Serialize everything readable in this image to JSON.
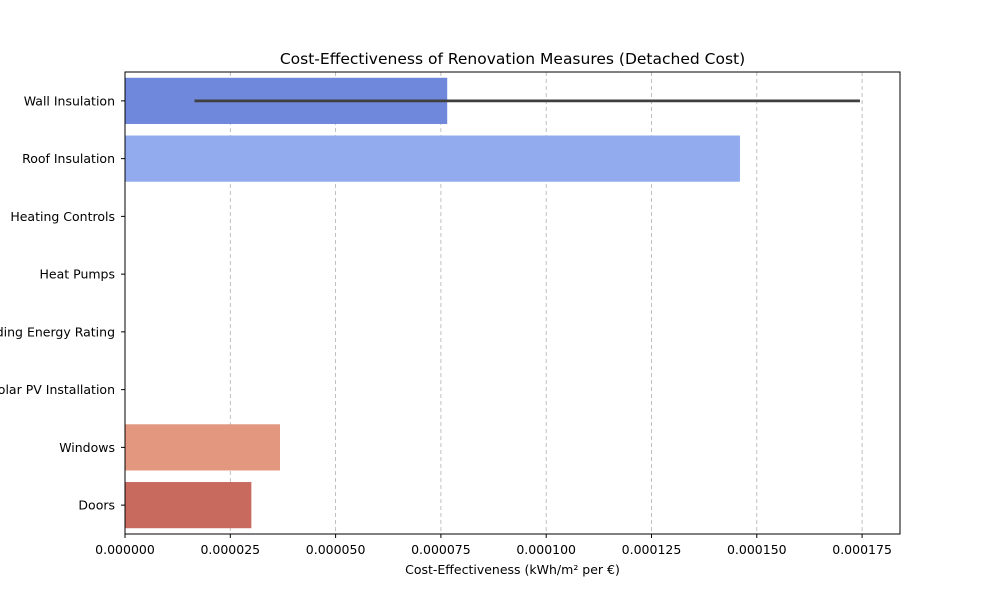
{
  "chart_data": {
    "type": "bar",
    "orientation": "horizontal",
    "title": "Cost-Effectiveness of Renovation Measures (Detached Cost)",
    "xlabel": "Cost-Effectiveness (kWh/m² per €)",
    "ylabel": "",
    "xlim": [
      0,
      0.000184
    ],
    "xticks": [
      "0.000000",
      "0.000025",
      "0.000050",
      "0.000075",
      "0.000100",
      "0.000125",
      "0.000150",
      "0.000175"
    ],
    "grid": "x-dashed",
    "categories": [
      "Wall Insulation",
      "Roof Insulation",
      "Heating Controls",
      "Heat Pumps",
      "Building Energy Rating",
      "Solar PV Installation",
      "Windows",
      "Doors"
    ],
    "values": [
      7.65e-05,
      0.000146,
      0,
      0,
      0,
      0,
      3.68e-05,
      3e-05
    ],
    "error_bars": [
      {
        "category": "Wall Insulation",
        "low": 1.65e-05,
        "high": 0.0001745
      }
    ],
    "colors": [
      "#6f88db",
      "#91abee",
      "#b9cdf8",
      "#d7dce6",
      "#f0d5c7",
      "#f4b99e",
      "#e2977e",
      "#c86a5e"
    ]
  }
}
